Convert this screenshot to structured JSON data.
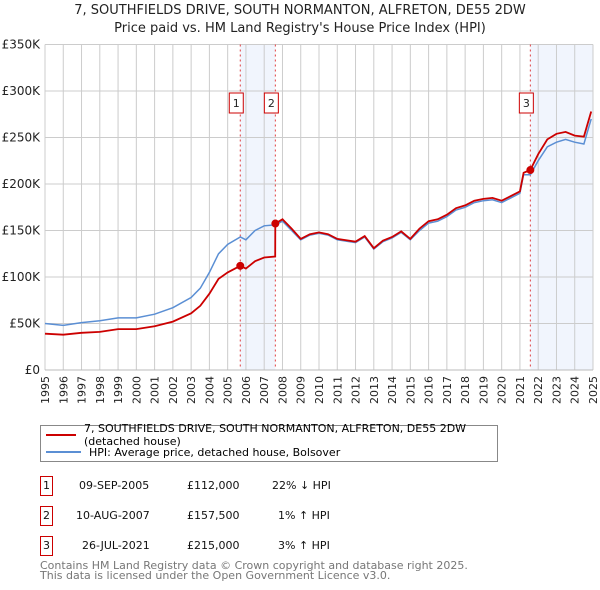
{
  "chart_data": {
    "type": "line",
    "title": "7, SOUTHFIELDS DRIVE, SOUTH NORMANTON, ALFRETON, DE55 2DW",
    "subtitle": "Price paid vs. HM Land Registry's House Price Index (HPI)",
    "xlim": [
      1995,
      2025
    ],
    "ylim": [
      0,
      350000
    ],
    "y_ticks": [
      0,
      50000,
      100000,
      150000,
      200000,
      250000,
      300000,
      350000
    ],
    "y_tick_labels": [
      "£0",
      "£50K",
      "£100K",
      "£150K",
      "£200K",
      "£250K",
      "£300K",
      "£350K"
    ],
    "x_ticks": [
      "1995",
      "1996",
      "1997",
      "1998",
      "1999",
      "2000",
      "2001",
      "2002",
      "2003",
      "2004",
      "2005",
      "2006",
      "2007",
      "2008",
      "2009",
      "2010",
      "2011",
      "2012",
      "2013",
      "2014",
      "2015",
      "2016",
      "2017",
      "2018",
      "2019",
      "2020",
      "2021",
      "2022",
      "2023",
      "2024",
      "2025"
    ],
    "grid": true,
    "series": [
      {
        "name": "7, SOUTHFIELDS DRIVE, SOUTH NORMANTON, ALFRETON, DE55 2DW (detached house)",
        "color": "#cc0000",
        "x": [
          1995,
          1996,
          1997,
          1998,
          1999,
          2000,
          2001,
          2002,
          2003,
          2003.5,
          2004,
          2004.5,
          2005,
          2005.69,
          2006,
          2006.5,
          2007,
          2007.6,
          2007.61,
          2008,
          2008.5,
          2009,
          2009.5,
          2010,
          2010.5,
          2011,
          2012,
          2012.5,
          2013,
          2013.5,
          2014,
          2014.5,
          2015,
          2015.5,
          2016,
          2016.5,
          2017,
          2017.5,
          2018,
          2018.5,
          2019,
          2019.5,
          2020,
          2020.5,
          2021,
          2021.2,
          2021.57,
          2022,
          2022.5,
          2023,
          2023.5,
          2024,
          2024.5,
          2024.9
        ],
        "y": [
          39,
          38,
          40,
          41,
          44,
          44,
          47,
          52,
          61,
          69,
          82,
          98,
          105,
          112,
          109,
          117,
          121,
          122,
          157.5,
          162,
          152,
          141,
          146,
          148,
          146,
          141,
          138,
          144,
          131,
          139,
          143,
          149,
          141,
          152,
          160,
          162,
          167,
          174,
          177,
          182,
          184,
          185,
          182,
          187,
          192,
          212,
          215,
          232,
          248,
          254,
          256,
          252,
          251,
          278
        ]
      },
      {
        "name": "HPI: Average price, detached house, Bolsover",
        "color": "#5b8fd4",
        "x": [
          1995,
          1996,
          1997,
          1998,
          1999,
          2000,
          2001,
          2002,
          2003,
          2003.5,
          2004,
          2004.5,
          2005,
          2005.69,
          2006,
          2006.5,
          2007,
          2007.6,
          2008,
          2008.5,
          2009,
          2009.5,
          2010,
          2010.5,
          2011,
          2012,
          2012.5,
          2013,
          2013.5,
          2014,
          2014.5,
          2015,
          2015.5,
          2016,
          2016.5,
          2017,
          2017.5,
          2018,
          2018.5,
          2019,
          2019.5,
          2020,
          2020.5,
          2021,
          2021.2,
          2021.57,
          2022,
          2022.5,
          2023,
          2023.5,
          2024,
          2024.5,
          2024.9
        ],
        "y": [
          50,
          48,
          51,
          53,
          56,
          56,
          60,
          67,
          78,
          88,
          105,
          125,
          135,
          143,
          140,
          150,
          155,
          156,
          160,
          150,
          140,
          145,
          147,
          145,
          140,
          137,
          143,
          130,
          138,
          142,
          148,
          140,
          150,
          158,
          160,
          165,
          172,
          175,
          180,
          182,
          183,
          180,
          185,
          190,
          210,
          210,
          225,
          240,
          245,
          248,
          245,
          243,
          270
        ]
      }
    ],
    "y_units": "thousands GBP",
    "sales": [
      {
        "id": "1",
        "x": 2005.69,
        "price": 112000,
        "date": "09-SEP-2005",
        "price_label": "£112,000",
        "hpi": "22% ↓ HPI"
      },
      {
        "id": "2",
        "x": 2007.61,
        "price": 157500,
        "date": "10-AUG-2007",
        "price_label": "£157,500",
        "hpi": "1% ↑ HPI"
      },
      {
        "id": "3",
        "x": 2021.57,
        "price": 215000,
        "date": "26-JUL-2021",
        "price_label": "£215,000",
        "hpi": "3% ↑ HPI"
      }
    ],
    "legend_placement": "below"
  },
  "footer": {
    "line1": "Contains HM Land Registry data © Crown copyright and database right 2025.",
    "line2": "This data is licensed under the Open Government Licence v3.0."
  }
}
